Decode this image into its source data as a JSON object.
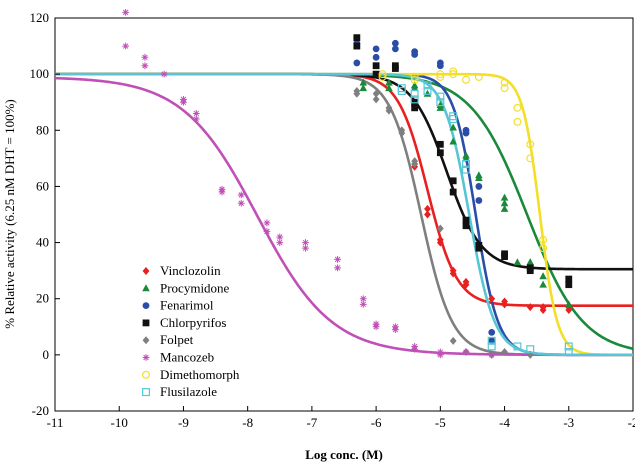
{
  "chart_data": {
    "type": "scatter",
    "title": "",
    "xlabel": "Log conc. (M)",
    "ylabel": "% Relative activity (6.25 nM DHT = 100%)",
    "xlim": [
      -11,
      -2
    ],
    "ylim": [
      -20,
      120
    ],
    "x_ticks": [
      -11,
      -10,
      -9,
      -8,
      -7,
      -6,
      -5,
      -4,
      -3,
      -2
    ],
    "y_ticks": [
      -20,
      0,
      20,
      40,
      60,
      80,
      100,
      120
    ],
    "x_tick_labels": [
      "-11",
      "-10",
      "-9",
      "-8",
      "-7",
      "-6",
      "-5",
      "-4",
      "-3",
      "-2"
    ],
    "y_tick_labels": [
      "-20",
      "0",
      "20",
      "40",
      "60",
      "80",
      "100",
      "120"
    ],
    "grid": false,
    "legend_position": "bottom-left inside plot",
    "series": [
      {
        "name": "Vinclozolin",
        "color": "#e8201f",
        "marker": "diamond",
        "curve": {
          "top": 100,
          "bottom": 17.5,
          "logEC50": -5.2,
          "hill": 1.9
        },
        "points": [
          [
            -5.4,
            68
          ],
          [
            -5.4,
            67
          ],
          [
            -5.2,
            52
          ],
          [
            -5.2,
            50
          ],
          [
            -5.0,
            40
          ],
          [
            -5.0,
            41
          ],
          [
            -4.8,
            30
          ],
          [
            -4.8,
            29
          ],
          [
            -4.6,
            25
          ],
          [
            -4.6,
            26
          ],
          [
            -4.2,
            20
          ],
          [
            -4.0,
            18
          ],
          [
            -4.0,
            19
          ],
          [
            -3.6,
            17
          ],
          [
            -3.4,
            16
          ],
          [
            -3.4,
            17
          ],
          [
            -3.0,
            17
          ],
          [
            -3.0,
            16
          ]
        ]
      },
      {
        "name": "Procymidone",
        "color": "#1a8a3a",
        "marker": "triangle",
        "curve": {
          "top": 100,
          "bottom": 0,
          "logEC50": -3.65,
          "hill": 1.0
        },
        "points": [
          [
            -6.2,
            97
          ],
          [
            -6.2,
            95
          ],
          [
            -5.8,
            97
          ],
          [
            -5.8,
            95
          ],
          [
            -5.4,
            95
          ],
          [
            -5.4,
            96
          ],
          [
            -5.2,
            93
          ],
          [
            -5.0,
            89
          ],
          [
            -5.0,
            88
          ],
          [
            -4.8,
            81
          ],
          [
            -4.8,
            76
          ],
          [
            -4.6,
            71
          ],
          [
            -4.6,
            70
          ],
          [
            -4.4,
            64
          ],
          [
            -4.4,
            63
          ],
          [
            -4.0,
            56
          ],
          [
            -4.0,
            52
          ],
          [
            -4.0,
            54
          ],
          [
            -3.8,
            33
          ],
          [
            -3.6,
            33
          ],
          [
            -3.6,
            33
          ],
          [
            -3.4,
            28
          ],
          [
            -3.4,
            25
          ],
          [
            -3.0,
            18
          ]
        ]
      },
      {
        "name": "Fenarimol",
        "color": "#2a4da8",
        "marker": "circle",
        "curve": {
          "top": 100,
          "bottom": 0,
          "logEC50": -4.45,
          "hill": 2.5
        },
        "points": [
          [
            -6.3,
            111
          ],
          [
            -6.3,
            104
          ],
          [
            -6.0,
            109
          ],
          [
            -6.0,
            106
          ],
          [
            -5.7,
            111
          ],
          [
            -5.7,
            109
          ],
          [
            -5.4,
            108
          ],
          [
            -5.4,
            107
          ],
          [
            -5.0,
            104
          ],
          [
            -5.0,
            103
          ],
          [
            -4.6,
            80
          ],
          [
            -4.6,
            79
          ],
          [
            -4.4,
            55
          ],
          [
            -4.4,
            60
          ],
          [
            -4.2,
            8
          ],
          [
            -4.2,
            5
          ]
        ]
      },
      {
        "name": "Chlorpyrifos",
        "color": "#111111",
        "marker": "square",
        "curve": {
          "top": 100,
          "bottom": 30.5,
          "logEC50": -4.9,
          "hill": 1.6
        },
        "points": [
          [
            -6.3,
            113
          ],
          [
            -6.3,
            110
          ],
          [
            -6.0,
            103
          ],
          [
            -6.0,
            100
          ],
          [
            -5.7,
            103
          ],
          [
            -5.7,
            102
          ],
          [
            -5.4,
            90
          ],
          [
            -5.4,
            88
          ],
          [
            -5.0,
            75
          ],
          [
            -5.0,
            72
          ],
          [
            -4.8,
            62
          ],
          [
            -4.8,
            58
          ],
          [
            -4.6,
            48
          ],
          [
            -4.6,
            46
          ],
          [
            -4.4,
            39
          ],
          [
            -4.4,
            38
          ],
          [
            -4.0,
            36
          ],
          [
            -4.0,
            35
          ],
          [
            -3.6,
            30
          ],
          [
            -3.6,
            31
          ],
          [
            -3.0,
            27
          ],
          [
            -3.0,
            25
          ]
        ]
      },
      {
        "name": "Folpet",
        "color": "#7f7f7f",
        "marker": "diamond",
        "curve": {
          "top": 100,
          "bottom": 0,
          "logEC50": -5.3,
          "hill": 1.8
        },
        "points": [
          [
            -6.3,
            94
          ],
          [
            -6.3,
            93
          ],
          [
            -6.0,
            93
          ],
          [
            -6.0,
            91
          ],
          [
            -5.8,
            88
          ],
          [
            -5.8,
            87
          ],
          [
            -5.6,
            80
          ],
          [
            -5.6,
            79
          ],
          [
            -5.4,
            69
          ],
          [
            -5.4,
            68
          ],
          [
            -5.0,
            45
          ],
          [
            -4.8,
            5
          ],
          [
            -4.6,
            1
          ],
          [
            -4.2,
            0
          ],
          [
            -4.0,
            1
          ],
          [
            -3.6,
            0
          ]
        ]
      },
      {
        "name": "Mancozeb",
        "color": "#c050b8",
        "marker": "asterisk",
        "curve": {
          "top": 99,
          "bottom": 0,
          "logEC50": -7.85,
          "hill": 0.75
        },
        "points": [
          [
            -9.9,
            122
          ],
          [
            -9.9,
            110
          ],
          [
            -9.6,
            106
          ],
          [
            -9.6,
            103
          ],
          [
            -9.3,
            100
          ],
          [
            -9.0,
            91
          ],
          [
            -9.0,
            90
          ],
          [
            -8.8,
            86
          ],
          [
            -8.8,
            84
          ],
          [
            -8.4,
            59
          ],
          [
            -8.4,
            58
          ],
          [
            -8.1,
            57
          ],
          [
            -8.1,
            54
          ],
          [
            -7.7,
            47
          ],
          [
            -7.7,
            44
          ],
          [
            -7.5,
            42
          ],
          [
            -7.5,
            40
          ],
          [
            -7.1,
            40
          ],
          [
            -7.1,
            38
          ],
          [
            -6.6,
            34
          ],
          [
            -6.6,
            31
          ],
          [
            -6.2,
            20
          ],
          [
            -6.2,
            18
          ],
          [
            -6.0,
            11
          ],
          [
            -6.0,
            10
          ],
          [
            -5.7,
            10
          ],
          [
            -5.7,
            9
          ],
          [
            -5.4,
            3
          ],
          [
            -5.4,
            2
          ],
          [
            -5.0,
            1
          ],
          [
            -5.0,
            0
          ],
          [
            -4.6,
            1
          ],
          [
            -4.2,
            0
          ]
        ]
      },
      {
        "name": "Dimethomorph",
        "color": "#f3df2a",
        "marker": "open-circle",
        "curve": {
          "top": 100,
          "bottom": 0,
          "logEC50": -3.45,
          "hill": 3.2
        },
        "points": [
          [
            -5.9,
            100
          ],
          [
            -5.9,
            99
          ],
          [
            -5.4,
            99
          ],
          [
            -5.4,
            98
          ],
          [
            -5.0,
            100
          ],
          [
            -5.0,
            99
          ],
          [
            -4.8,
            101
          ],
          [
            -4.8,
            100
          ],
          [
            -4.6,
            98
          ],
          [
            -4.4,
            99
          ],
          [
            -4.0,
            97
          ],
          [
            -4.0,
            95
          ],
          [
            -3.8,
            83
          ],
          [
            -3.8,
            88
          ],
          [
            -3.6,
            75
          ],
          [
            -3.6,
            70
          ],
          [
            -3.4,
            38
          ],
          [
            -3.4,
            41
          ]
        ]
      },
      {
        "name": "Flusilazole",
        "color": "#56c6d6",
        "marker": "open-square",
        "curve": {
          "top": 100,
          "bottom": 0,
          "logEC50": -4.55,
          "hill": 2.2
        },
        "points": [
          [
            -5.6,
            95
          ],
          [
            -5.6,
            94
          ],
          [
            -5.4,
            93
          ],
          [
            -5.4,
            91
          ],
          [
            -5.2,
            96
          ],
          [
            -5.2,
            94
          ],
          [
            -5.0,
            92
          ],
          [
            -5.0,
            90
          ],
          [
            -4.8,
            85
          ],
          [
            -4.8,
            84
          ],
          [
            -4.6,
            68
          ],
          [
            -4.6,
            66
          ],
          [
            -4.2,
            5
          ],
          [
            -4.2,
            3
          ],
          [
            -3.8,
            3
          ],
          [
            -3.6,
            2
          ],
          [
            -3.0,
            3
          ],
          [
            -3.0,
            1
          ]
        ]
      }
    ]
  }
}
